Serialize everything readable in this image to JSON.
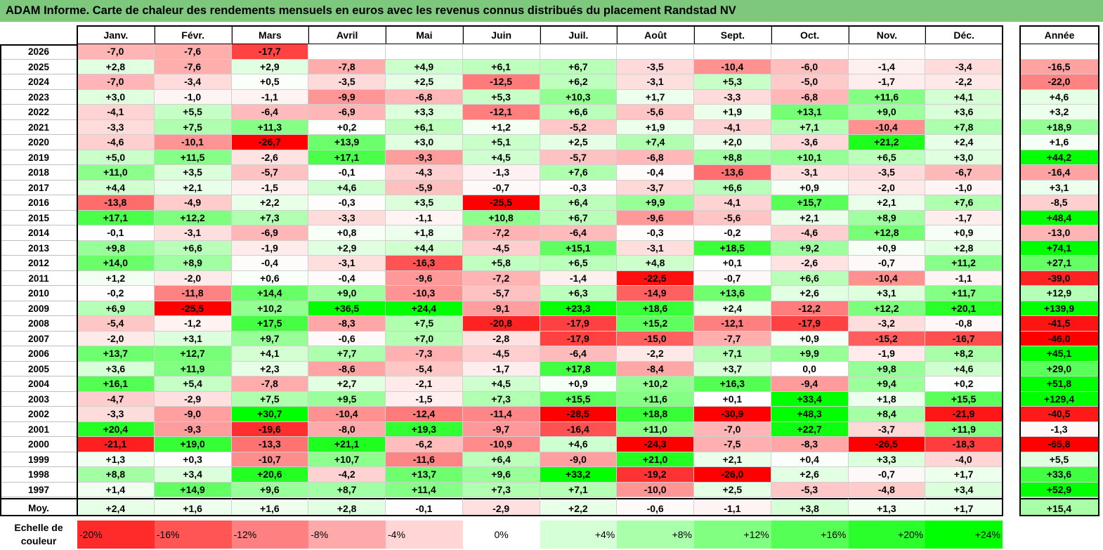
{
  "title": "ADAM Informe. Carte de chaleur des rendements mensuels en euros avec les revenus connus distribués du placement Randstad NV",
  "chart_data": {
    "type": "heatmap",
    "title": "ADAM Informe. Carte de chaleur des rendements mensuels en euros avec les revenus connus distribués du placement Randstad NV",
    "columns": [
      "Janv.",
      "Févr.",
      "Mars",
      "Avril",
      "Mai",
      "Juin",
      "Juil.",
      "Août",
      "Sept.",
      "Oct.",
      "Nov.",
      "Déc."
    ],
    "annual_header": "Année",
    "rows": [
      {
        "year": "2026",
        "values": [
          "-7,0",
          "-7,6",
          "-17,7",
          "",
          "",
          "",
          "",
          "",
          "",
          "",
          "",
          ""
        ],
        "annual": ""
      },
      {
        "year": "2025",
        "values": [
          "+2,8",
          "-7,6",
          "+2,9",
          "-7,8",
          "+4,9",
          "+6,1",
          "+6,7",
          "-3,5",
          "-10,4",
          "-6,0",
          "-1,4",
          "-3,4"
        ],
        "annual": "-16,5"
      },
      {
        "year": "2024",
        "values": [
          "-7,0",
          "-3,4",
          "+0,5",
          "-3,5",
          "+2,5",
          "-12,5",
          "+6,2",
          "-3,1",
          "+5,3",
          "-5,0",
          "-1,7",
          "-2,2"
        ],
        "annual": "-22,0"
      },
      {
        "year": "2023",
        "values": [
          "+3,0",
          "-1,0",
          "-1,1",
          "-9,9",
          "-6,8",
          "+5,3",
          "+10,3",
          "+1,7",
          "-3,3",
          "-6,8",
          "+11,6",
          "+4,1"
        ],
        "annual": "+4,6"
      },
      {
        "year": "2022",
        "values": [
          "-4,1",
          "+5,5",
          "-6,4",
          "-6,9",
          "+3,3",
          "-12,1",
          "+6,6",
          "-5,6",
          "+1,9",
          "+13,1",
          "+9,0",
          "+3,6"
        ],
        "annual": "+3,2"
      },
      {
        "year": "2021",
        "values": [
          "-3,3",
          "+7,5",
          "+11,3",
          "+0,2",
          "+6,1",
          "+1,2",
          "-5,2",
          "+1,9",
          "-4,1",
          "+7,1",
          "-10,4",
          "+7,8"
        ],
        "annual": "+18,9"
      },
      {
        "year": "2020",
        "values": [
          "-4,6",
          "-10,1",
          "-26,7",
          "+13,9",
          "+3,0",
          "+5,1",
          "+2,5",
          "+7,4",
          "+2,0",
          "-3,6",
          "+21,2",
          "+2,4"
        ],
        "annual": "+1,6"
      },
      {
        "year": "2019",
        "values": [
          "+5,0",
          "+11,5",
          "-2,6",
          "+17,1",
          "-9,3",
          "+4,5",
          "-5,7",
          "-6,8",
          "+8,8",
          "+10,1",
          "+6,5",
          "+3,0"
        ],
        "annual": "+44,2"
      },
      {
        "year": "2018",
        "values": [
          "+11,0",
          "+3,5",
          "-5,7",
          "-0,1",
          "-4,3",
          "-1,3",
          "+7,6",
          "-0,4",
          "-13,6",
          "-3,1",
          "-3,5",
          "-6,7"
        ],
        "annual": "-16,4"
      },
      {
        "year": "2017",
        "values": [
          "+4,4",
          "+2,1",
          "-1,5",
          "+4,6",
          "-5,9",
          "-0,7",
          "-0,3",
          "-3,7",
          "+6,6",
          "+0,9",
          "-2,0",
          "-1,0"
        ],
        "annual": "+3,1"
      },
      {
        "year": "2016",
        "values": [
          "-13,8",
          "-4,9",
          "+2,2",
          "-0,3",
          "+3,5",
          "-25,5",
          "+6,4",
          "+9,9",
          "-4,1",
          "+15,7",
          "+2,1",
          "+7,6"
        ],
        "annual": "-8,5"
      },
      {
        "year": "2015",
        "values": [
          "+17,1",
          "+12,2",
          "+7,3",
          "-3,3",
          "-1,1",
          "+10,8",
          "+6,7",
          "-9,6",
          "-5,6",
          "+2,1",
          "+8,9",
          "-1,7"
        ],
        "annual": "+48,4"
      },
      {
        "year": "2014",
        "values": [
          "-0,1",
          "-3,1",
          "-6,9",
          "+0,8",
          "+1,8",
          "-7,2",
          "-6,4",
          "-0,3",
          "-0,2",
          "-4,6",
          "+12,8",
          "+0,9"
        ],
        "annual": "-13,0"
      },
      {
        "year": "2013",
        "values": [
          "+9,8",
          "+6,6",
          "-1,9",
          "+2,9",
          "+4,4",
          "-4,5",
          "+15,1",
          "-3,1",
          "+18,5",
          "+9,2",
          "+0,9",
          "+2,8"
        ],
        "annual": "+74,1"
      },
      {
        "year": "2012",
        "values": [
          "+14,0",
          "+8,9",
          "-0,4",
          "-3,1",
          "-16,3",
          "+5,8",
          "+6,5",
          "+4,8",
          "+0,1",
          "-2,6",
          "-0,7",
          "+11,2"
        ],
        "annual": "+27,1"
      },
      {
        "year": "2011",
        "values": [
          "+1,2",
          "-2,0",
          "+0,6",
          "-0,4",
          "-9,6",
          "-7,2",
          "-1,4",
          "-22,5",
          "-0,7",
          "+6,6",
          "-10,4",
          "-1,1"
        ],
        "annual": "-39,0"
      },
      {
        "year": "2010",
        "values": [
          "-0,2",
          "-11,8",
          "+14,4",
          "+9,0",
          "-10,3",
          "-5,7",
          "+6,3",
          "-14,9",
          "+13,6",
          "+2,6",
          "+3,1",
          "+11,7"
        ],
        "annual": "+12,9"
      },
      {
        "year": "2009",
        "values": [
          "+6,9",
          "-25,5",
          "+10,2",
          "+36,5",
          "+24,4",
          "-9,1",
          "+23,3",
          "+18,6",
          "+2,4",
          "-12,2",
          "+12,2",
          "+20,1"
        ],
        "annual": "+139,9"
      },
      {
        "year": "2008",
        "values": [
          "-5,4",
          "-1,2",
          "+17,5",
          "-8,3",
          "+7,5",
          "-20,8",
          "-17,9",
          "+15,2",
          "-12,1",
          "-17,9",
          "-3,2",
          "-0,8"
        ],
        "annual": "-41,5"
      },
      {
        "year": "2007",
        "values": [
          "-2,0",
          "+3,1",
          "+9,7",
          "-0,6",
          "+7,0",
          "-2,8",
          "-17,9",
          "-15,0",
          "-7,7",
          "+0,9",
          "-15,2",
          "-16,7"
        ],
        "annual": "-46,0"
      },
      {
        "year": "2006",
        "values": [
          "+13,7",
          "+12,7",
          "+4,1",
          "+7,7",
          "-7,3",
          "-4,5",
          "-6,4",
          "-2,2",
          "+7,1",
          "+9,9",
          "-1,9",
          "+8,2"
        ],
        "annual": "+45,1"
      },
      {
        "year": "2005",
        "values": [
          "+3,6",
          "+11,9",
          "+2,3",
          "-8,6",
          "-5,4",
          "-1,7",
          "+17,8",
          "-8,4",
          "+3,7",
          "0,0",
          "+9,8",
          "+4,6"
        ],
        "annual": "+29,0"
      },
      {
        "year": "2004",
        "values": [
          "+16,1",
          "+5,4",
          "-7,8",
          "+2,7",
          "-2,1",
          "+4,5",
          "+0,9",
          "+10,2",
          "+16,3",
          "-9,4",
          "+9,4",
          "+0,2"
        ],
        "annual": "+51,8"
      },
      {
        "year": "2003",
        "values": [
          "-4,7",
          "-2,9",
          "+7,5",
          "+9,5",
          "-1,5",
          "+7,3",
          "+15,5",
          "+11,6",
          "+0,1",
          "+33,4",
          "+1,8",
          "+15,5"
        ],
        "annual": "+129,4"
      },
      {
        "year": "2002",
        "values": [
          "-3,3",
          "-9,0",
          "+30,7",
          "-10,4",
          "-12,4",
          "-11,4",
          "-28,5",
          "+18,8",
          "-30,9",
          "+48,3",
          "+8,4",
          "-21,9"
        ],
        "annual": "-40,5"
      },
      {
        "year": "2001",
        "values": [
          "+20,4",
          "-9,3",
          "-19,6",
          "-8,0",
          "+19,3",
          "-9,7",
          "-16,4",
          "+11,0",
          "-7,0",
          "+22,7",
          "-3,7",
          "+11,9"
        ],
        "annual": "-1,3"
      },
      {
        "year": "2000",
        "values": [
          "-21,1",
          "+19,0",
          "-13,3",
          "+21,1",
          "-6,2",
          "-10,9",
          "+4,6",
          "-24,3",
          "-7,5",
          "-8,3",
          "-26,5",
          "-18,3"
        ],
        "annual": "-65,8"
      },
      {
        "year": "1999",
        "values": [
          "+1,3",
          "+0,3",
          "-10,7",
          "+10,7",
          "-11,6",
          "+6,4",
          "-9,0",
          "+21,0",
          "+2,1",
          "+0,4",
          "+3,3",
          "-4,0"
        ],
        "annual": "+5,5"
      },
      {
        "year": "1998",
        "values": [
          "+8,8",
          "+3,4",
          "+20,6",
          "-4,2",
          "+13,7",
          "+9,6",
          "+33,2",
          "-19,2",
          "-26,0",
          "+2,6",
          "-0,7",
          "+1,7"
        ],
        "annual": "+33,6"
      },
      {
        "year": "1997",
        "values": [
          "+1,4",
          "+14,9",
          "+9,6",
          "+8,7",
          "+11,4",
          "+7,3",
          "+7,1",
          "-10,0",
          "+2,5",
          "-5,3",
          "-4,8",
          "+3,4"
        ],
        "annual": "+52,9"
      }
    ],
    "average": {
      "label": "Moy.",
      "values": [
        "+2,4",
        "+1,6",
        "+1,6",
        "+2,8",
        "-0,1",
        "-2,9",
        "+2,2",
        "-0,6",
        "-1,1",
        "+3,8",
        "+1,3",
        "+1,7"
      ],
      "annual": "+15,4"
    },
    "scale": {
      "label_line1": "Echelle de",
      "label_line2": "couleur",
      "stops": [
        "-20%",
        "-16%",
        "-12%",
        "-8%",
        "-4%",
        "0%",
        "+4%",
        "+8%",
        "+12%",
        "+16%",
        "+20%",
        "+24%"
      ]
    },
    "colors": {
      "negative": "#ff0000",
      "positive": "#00ff00",
      "neutral": "#ffffff",
      "title_bg": "#7dc87d"
    }
  }
}
